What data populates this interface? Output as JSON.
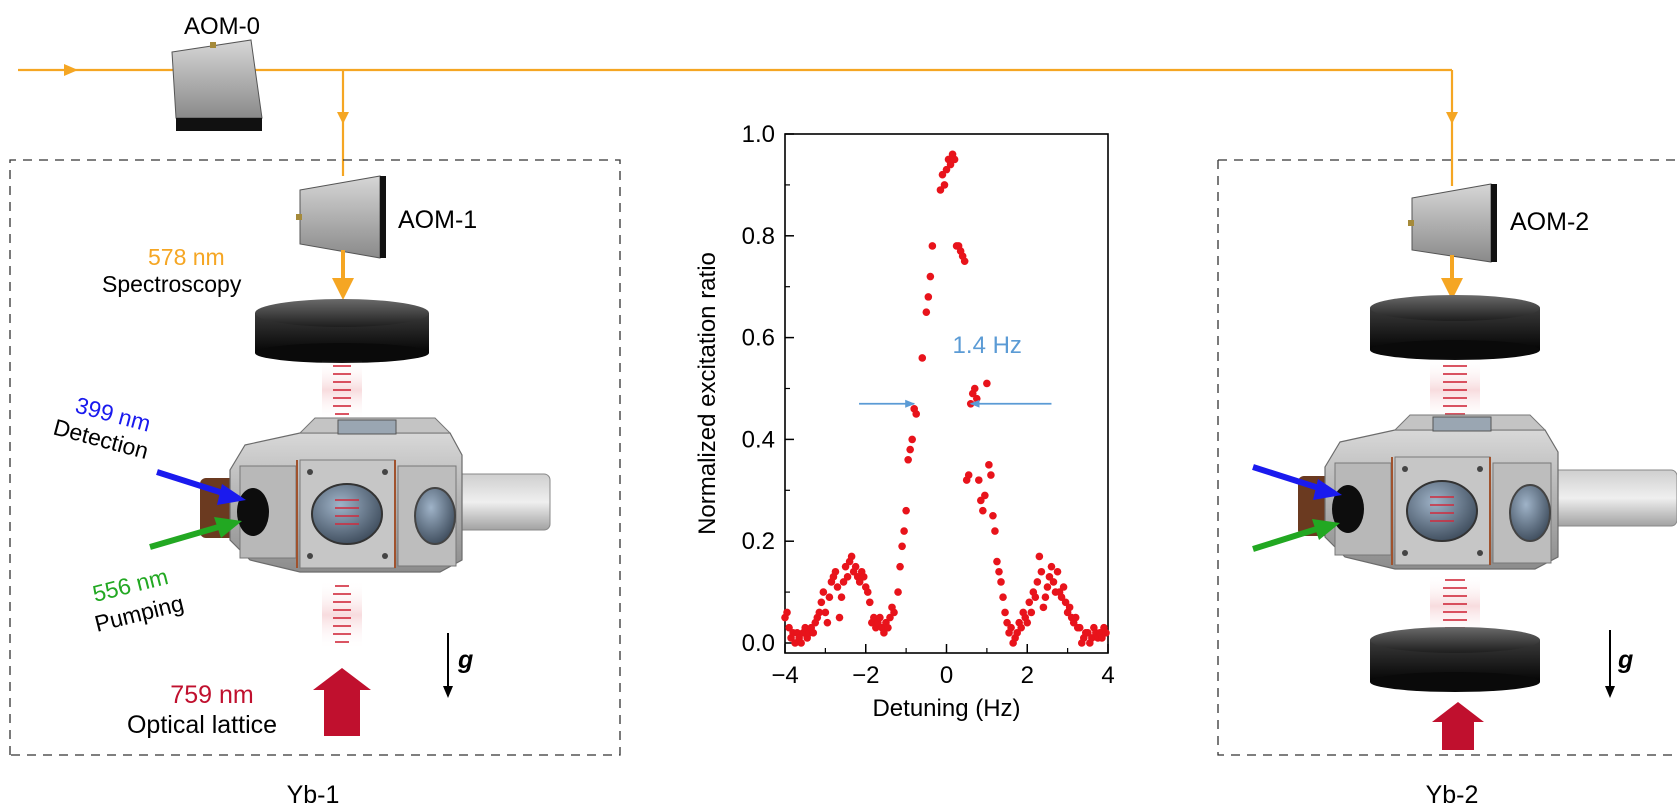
{
  "labels": {
    "aom0": "AOM-0",
    "aom1": "AOM-1",
    "aom2": "AOM-2",
    "wl578": "578 nm",
    "spectroscopy": "Spectroscopy",
    "wl399": "399 nm",
    "detection": "Detection",
    "wl556": "556 nm",
    "pumping": "Pumping",
    "wl759": "759 nm",
    "optical_lattice": "Optical lattice",
    "gravity": "g",
    "yb1": "Yb-1",
    "yb2": "Yb-2"
  },
  "colors": {
    "beam_578": "#f5a623",
    "wl578_text": "#f5a623",
    "wl399": "#1a1aee",
    "wl556": "#22a822",
    "wl759": "#c0102e",
    "fwhm_arrow": "#5b9bd5",
    "data_points": "#e8131b"
  },
  "chart_data": {
    "type": "scatter",
    "xlabel": "Detuning (Hz)",
    "ylabel": "Normalized excitation ratio",
    "xlim": [
      -4,
      4
    ],
    "ylim": [
      0,
      1.0
    ],
    "xticks": [
      -4,
      -2,
      0,
      2,
      4
    ],
    "xtick_labels": [
      "−4",
      "−2",
      "0",
      "2",
      "4"
    ],
    "yticks": [
      0,
      0.2,
      0.4,
      0.6,
      0.8,
      1.0
    ],
    "ytick_labels": [
      "0.0",
      "0.2",
      "0.4",
      "0.6",
      "0.8",
      "1.0"
    ],
    "annotation": "1.4 Hz",
    "fwhm_left": -0.8,
    "fwhm_right": 0.6,
    "fwhm_y": 0.47,
    "points": [
      [
        -4.0,
        0.05
      ],
      [
        -3.95,
        0.06
      ],
      [
        -3.9,
        0.03
      ],
      [
        -3.85,
        0.01
      ],
      [
        -3.8,
        0.02
      ],
      [
        -3.75,
        0.0
      ],
      [
        -3.7,
        0.02
      ],
      [
        -3.65,
        0.01
      ],
      [
        -3.6,
        0.0
      ],
      [
        -3.55,
        0.02
      ],
      [
        -3.5,
        0.03
      ],
      [
        -3.45,
        0.01
      ],
      [
        -3.4,
        0.02
      ],
      [
        -3.35,
        0.03
      ],
      [
        -3.3,
        0.02
      ],
      [
        -3.25,
        0.04
      ],
      [
        -3.2,
        0.05
      ],
      [
        -3.15,
        0.06
      ],
      [
        -3.1,
        0.08
      ],
      [
        -3.05,
        0.1
      ],
      [
        -3.0,
        0.06
      ],
      [
        -2.95,
        0.04
      ],
      [
        -2.9,
        0.09
      ],
      [
        -2.85,
        0.12
      ],
      [
        -2.8,
        0.13
      ],
      [
        -2.75,
        0.14
      ],
      [
        -2.7,
        0.11
      ],
      [
        -2.65,
        0.05
      ],
      [
        -2.6,
        0.09
      ],
      [
        -2.55,
        0.12
      ],
      [
        -2.5,
        0.15
      ],
      [
        -2.45,
        0.13
      ],
      [
        -2.4,
        0.16
      ],
      [
        -2.35,
        0.17
      ],
      [
        -2.3,
        0.14
      ],
      [
        -2.25,
        0.15
      ],
      [
        -2.2,
        0.13
      ],
      [
        -2.15,
        0.12
      ],
      [
        -2.1,
        0.14
      ],
      [
        -2.05,
        0.13
      ],
      [
        -2.0,
        0.11
      ],
      [
        -1.95,
        0.1
      ],
      [
        -1.9,
        0.08
      ],
      [
        -1.85,
        0.04
      ],
      [
        -1.8,
        0.05
      ],
      [
        -1.75,
        0.03
      ],
      [
        -1.7,
        0.04
      ],
      [
        -1.65,
        0.05
      ],
      [
        -1.6,
        0.03
      ],
      [
        -1.55,
        0.02
      ],
      [
        -1.5,
        0.04
      ],
      [
        -1.45,
        0.03
      ],
      [
        -1.4,
        0.05
      ],
      [
        -1.35,
        0.07
      ],
      [
        -1.3,
        0.06
      ],
      [
        -1.2,
        0.1
      ],
      [
        -1.15,
        0.15
      ],
      [
        -1.1,
        0.19
      ],
      [
        -1.05,
        0.22
      ],
      [
        -1.0,
        0.26
      ],
      [
        -0.95,
        0.36
      ],
      [
        -0.9,
        0.38
      ],
      [
        -0.85,
        0.4
      ],
      [
        -0.8,
        0.46
      ],
      [
        -0.75,
        0.45
      ],
      [
        -0.6,
        0.56
      ],
      [
        -0.5,
        0.65
      ],
      [
        -0.45,
        0.68
      ],
      [
        -0.4,
        0.72
      ],
      [
        -0.35,
        0.78
      ],
      [
        -0.15,
        0.89
      ],
      [
        -0.1,
        0.92
      ],
      [
        -0.05,
        0.9
      ],
      [
        0.0,
        0.93
      ],
      [
        0.05,
        0.95
      ],
      [
        0.1,
        0.94
      ],
      [
        0.15,
        0.96
      ],
      [
        0.2,
        0.95
      ],
      [
        0.25,
        0.78
      ],
      [
        0.3,
        0.78
      ],
      [
        0.35,
        0.77
      ],
      [
        0.4,
        0.76
      ],
      [
        0.45,
        0.75
      ],
      [
        0.5,
        0.32
      ],
      [
        0.55,
        0.33
      ],
      [
        0.6,
        0.47
      ],
      [
        0.65,
        0.49
      ],
      [
        0.7,
        0.5
      ],
      [
        0.75,
        0.48
      ],
      [
        0.8,
        0.32
      ],
      [
        0.85,
        0.28
      ],
      [
        0.9,
        0.26
      ],
      [
        0.95,
        0.29
      ],
      [
        1.0,
        0.51
      ],
      [
        1.05,
        0.35
      ],
      [
        1.1,
        0.33
      ],
      [
        1.15,
        0.25
      ],
      [
        1.2,
        0.22
      ],
      [
        1.25,
        0.16
      ],
      [
        1.3,
        0.14
      ],
      [
        1.35,
        0.12
      ],
      [
        1.4,
        0.09
      ],
      [
        1.45,
        0.06
      ],
      [
        1.5,
        0.04
      ],
      [
        1.55,
        0.02
      ],
      [
        1.6,
        0.03
      ],
      [
        1.65,
        0.0
      ],
      [
        1.7,
        0.01
      ],
      [
        1.75,
        0.02
      ],
      [
        1.8,
        0.04
      ],
      [
        1.85,
        0.03
      ],
      [
        1.9,
        0.06
      ],
      [
        1.95,
        0.05
      ],
      [
        2.0,
        0.04
      ],
      [
        2.05,
        0.08
      ],
      [
        2.1,
        0.06
      ],
      [
        2.15,
        0.1
      ],
      [
        2.2,
        0.09
      ],
      [
        2.25,
        0.12
      ],
      [
        2.3,
        0.17
      ],
      [
        2.35,
        0.14
      ],
      [
        2.4,
        0.07
      ],
      [
        2.45,
        0.09
      ],
      [
        2.5,
        0.11
      ],
      [
        2.55,
        0.13
      ],
      [
        2.6,
        0.15
      ],
      [
        2.65,
        0.12
      ],
      [
        2.7,
        0.1
      ],
      [
        2.75,
        0.14
      ],
      [
        2.8,
        0.1
      ],
      [
        2.85,
        0.09
      ],
      [
        2.9,
        0.11
      ],
      [
        2.95,
        0.08
      ],
      [
        3.0,
        0.06
      ],
      [
        3.05,
        0.07
      ],
      [
        3.1,
        0.05
      ],
      [
        3.15,
        0.04
      ],
      [
        3.2,
        0.05
      ],
      [
        3.25,
        0.03
      ],
      [
        3.3,
        0.03
      ],
      [
        3.35,
        0.0
      ],
      [
        3.4,
        0.01
      ],
      [
        3.45,
        0.02
      ],
      [
        3.5,
        0.02
      ],
      [
        3.55,
        0.0
      ],
      [
        3.6,
        0.01
      ],
      [
        3.65,
        0.03
      ],
      [
        3.7,
        0.02
      ],
      [
        3.75,
        0.01
      ],
      [
        3.8,
        0.02
      ],
      [
        3.85,
        0.01
      ],
      [
        3.9,
        0.03
      ],
      [
        3.95,
        0.02
      ]
    ]
  }
}
